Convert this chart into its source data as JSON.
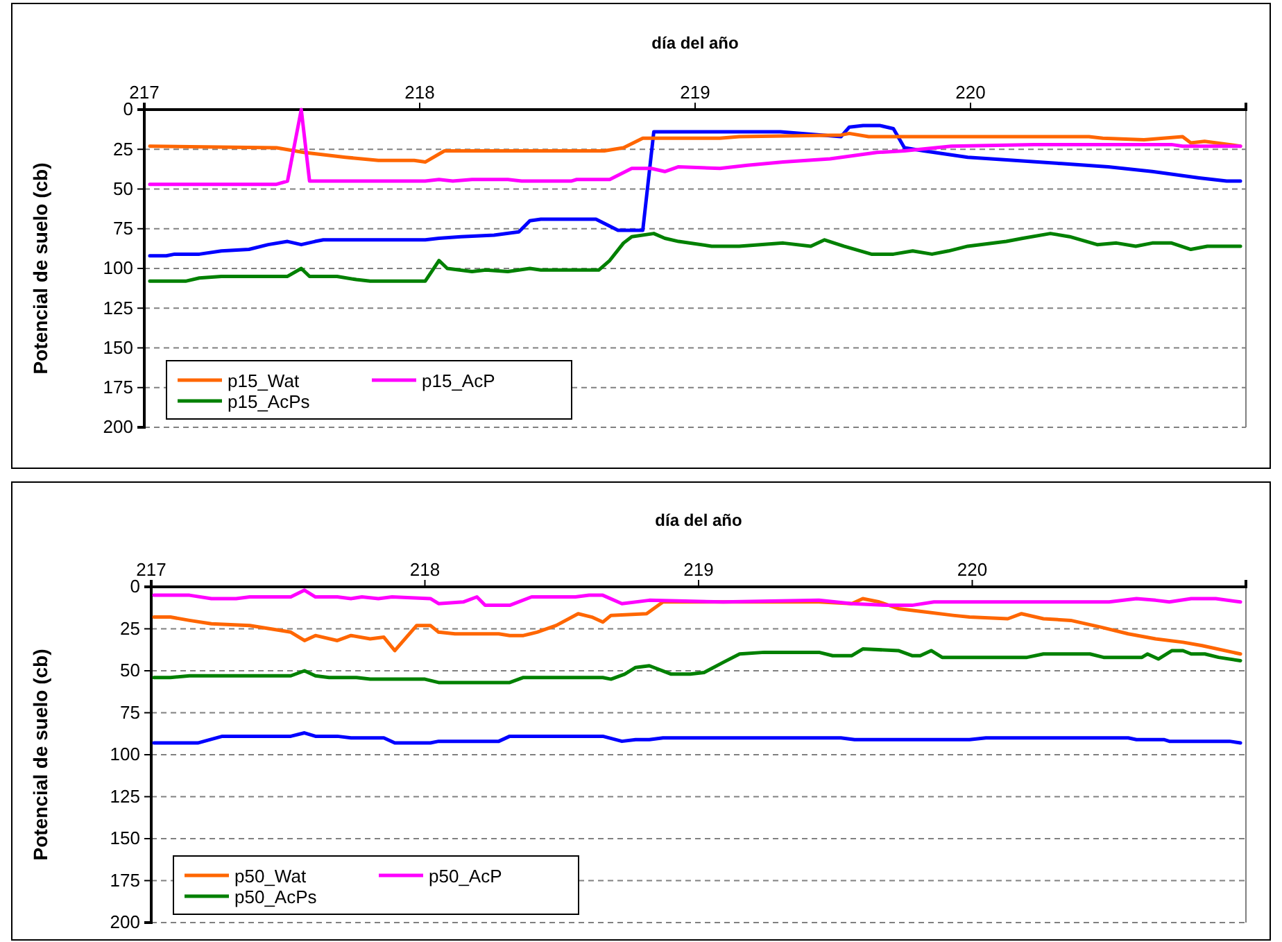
{
  "chart_data": [
    {
      "type": "line",
      "xlabel": "día del año",
      "ylabel": "Potencial de suelo (cb)",
      "xlim": [
        217,
        221
      ],
      "xticks": [
        217,
        218,
        219,
        220
      ],
      "ylim": [
        200,
        0
      ],
      "yticks": [
        0,
        25,
        50,
        75,
        100,
        125,
        150,
        175,
        200
      ],
      "grid": "y",
      "legend": "bottom left",
      "line_style": "solid",
      "marker": "none",
      "series": [
        {
          "color": "#0000ff",
          "x": [
            217.02,
            217.08,
            217.11,
            217.2,
            217.28,
            217.38,
            217.45,
            217.52,
            217.57,
            217.62,
            217.65,
            218.02,
            218.07,
            218.15,
            218.27,
            218.36,
            218.4,
            218.44,
            218.64,
            218.72,
            218.81,
            218.85,
            219.09,
            219.31,
            219.53,
            219.56,
            219.61,
            219.67,
            219.72,
            219.76,
            219.83,
            219.99,
            220.16,
            220.33,
            220.5,
            220.66,
            220.83,
            220.93,
            220.98
          ],
          "values": [
            92,
            92,
            91,
            91,
            89,
            88,
            85,
            83,
            85,
            83,
            82,
            82,
            81,
            80,
            79,
            77,
            70,
            69,
            69,
            76,
            76,
            14,
            14,
            14,
            17,
            11,
            10,
            10,
            12,
            24,
            26,
            30,
            32,
            34,
            36,
            39,
            43,
            45,
            45
          ]
        },
        {
          "name": "p15_Wat",
          "color": "#ff6600",
          "x": [
            217.02,
            217.48,
            217.58,
            217.73,
            217.85,
            217.98,
            218.02,
            218.09,
            218.67,
            218.74,
            218.81,
            219.09,
            219.16,
            219.53,
            219.56,
            219.63,
            220.43,
            220.48,
            220.63,
            220.7,
            220.77,
            220.8,
            220.85,
            220.98
          ],
          "values": [
            23,
            24,
            27,
            30,
            32,
            32,
            33,
            26,
            26,
            24,
            18,
            18,
            17,
            16,
            15,
            17,
            17,
            18,
            19,
            18,
            17,
            21,
            20,
            23
          ]
        },
        {
          "name": "p15_AcP",
          "color": "#ff00ff",
          "x": [
            217.02,
            217.48,
            217.52,
            217.57,
            217.6,
            218.02,
            218.07,
            218.12,
            218.19,
            218.32,
            218.37,
            218.55,
            218.57,
            218.69,
            218.77,
            218.84,
            218.89,
            218.94,
            219.09,
            219.19,
            219.32,
            219.49,
            219.66,
            219.76,
            219.93,
            220.23,
            220.73,
            220.77,
            220.98
          ],
          "values": [
            47,
            47,
            45,
            0,
            45,
            45,
            44,
            45,
            44,
            44,
            45,
            45,
            44,
            44,
            37,
            37,
            39,
            36,
            37,
            35,
            33,
            31,
            27,
            26,
            23,
            22,
            22,
            23,
            23
          ]
        },
        {
          "name": "p15_AcPs",
          "color": "#008000",
          "x": [
            217.02,
            217.15,
            217.2,
            217.28,
            217.52,
            217.57,
            217.6,
            217.7,
            217.77,
            217.82,
            218.02,
            218.07,
            218.1,
            218.19,
            218.24,
            218.32,
            218.4,
            218.44,
            218.65,
            218.69,
            218.74,
            218.77,
            218.85,
            218.89,
            218.94,
            219.06,
            219.16,
            219.32,
            219.42,
            219.47,
            219.54,
            219.64,
            219.72,
            219.79,
            219.86,
            219.92,
            219.99,
            220.13,
            220.19,
            220.29,
            220.36,
            220.46,
            220.53,
            220.6,
            220.66,
            220.73,
            220.8,
            220.86,
            220.98
          ],
          "values": [
            108,
            108,
            106,
            105,
            105,
            100,
            105,
            105,
            107,
            108,
            108,
            95,
            100,
            102,
            101,
            102,
            100,
            101,
            101,
            95,
            84,
            80,
            78,
            81,
            83,
            86,
            86,
            84,
            86,
            82,
            86,
            91,
            91,
            89,
            91,
            89,
            86,
            83,
            81,
            78,
            80,
            85,
            84,
            86,
            84,
            84,
            88,
            86,
            86
          ]
        }
      ]
    },
    {
      "type": "line",
      "xlabel": "día del año",
      "ylabel": "Potencial de suelo (cb)",
      "xlim": [
        217,
        221
      ],
      "xticks": [
        217,
        218,
        219,
        220
      ],
      "ylim": [
        200,
        0
      ],
      "yticks": [
        0,
        25,
        50,
        75,
        100,
        125,
        150,
        175,
        200
      ],
      "grid": "y",
      "legend": "bottom left",
      "line_style": "solid",
      "marker": "none",
      "series": [
        {
          "color": "#0000ff",
          "x": [
            217.01,
            217.17,
            217.26,
            217.51,
            217.56,
            217.6,
            217.68,
            217.73,
            217.85,
            217.89,
            218.02,
            218.05,
            218.27,
            218.31,
            218.65,
            218.72,
            218.77,
            218.82,
            218.87,
            219.09,
            219.52,
            219.57,
            219.99,
            220.05,
            220.57,
            220.6,
            220.7,
            220.72,
            220.94,
            220.98
          ],
          "values": [
            93,
            93,
            89,
            89,
            87,
            89,
            89,
            90,
            90,
            93,
            93,
            92,
            92,
            89,
            89,
            92,
            91,
            91,
            90,
            90,
            90,
            91,
            91,
            90,
            90,
            91,
            91,
            92,
            92,
            93
          ]
        },
        {
          "name": "p50_Wat",
          "color": "#ff6600",
          "x": [
            217.01,
            217.07,
            217.14,
            217.22,
            217.36,
            217.51,
            217.56,
            217.6,
            217.68,
            217.73,
            217.8,
            217.85,
            217.89,
            217.97,
            218.02,
            218.05,
            218.11,
            218.27,
            218.31,
            218.36,
            218.41,
            218.48,
            218.56,
            218.61,
            218.65,
            218.68,
            218.81,
            218.87,
            219.44,
            219.56,
            219.6,
            219.66,
            219.73,
            219.83,
            219.93,
            219.99,
            220.13,
            220.18,
            220.26,
            220.36,
            220.47,
            220.57,
            220.67,
            220.77,
            220.84,
            220.98
          ],
          "values": [
            18,
            18,
            20,
            22,
            23,
            27,
            32,
            29,
            32,
            29,
            31,
            30,
            38,
            23,
            23,
            27,
            28,
            28,
            29,
            29,
            27,
            23,
            16,
            18,
            21,
            17,
            16,
            9,
            9,
            10,
            7,
            9,
            13,
            15,
            17,
            18,
            19,
            16,
            19,
            20,
            24,
            28,
            31,
            33,
            35,
            40
          ]
        },
        {
          "name": "p50_AcP",
          "color": "#ff00ff",
          "x": [
            217.01,
            217.14,
            217.22,
            217.31,
            217.36,
            217.51,
            217.56,
            217.6,
            217.68,
            217.73,
            217.77,
            217.83,
            217.88,
            218.02,
            218.05,
            218.14,
            218.19,
            218.22,
            218.31,
            218.39,
            218.55,
            218.6,
            218.65,
            218.72,
            218.82,
            219.09,
            219.44,
            219.56,
            219.69,
            219.78,
            219.86,
            220.5,
            220.6,
            220.67,
            220.72,
            220.8,
            220.89,
            220.98
          ],
          "values": [
            5,
            5,
            7,
            7,
            6,
            6,
            2,
            6,
            6,
            7,
            6,
            7,
            6,
            7,
            10,
            9,
            6,
            11,
            11,
            6,
            6,
            5,
            5,
            10,
            8,
            9,
            8,
            10,
            11,
            11,
            9,
            9,
            7,
            8,
            9,
            7,
            7,
            9
          ]
        },
        {
          "name": "p50_AcPs",
          "color": "#008000",
          "x": [
            217.01,
            217.07,
            217.14,
            217.51,
            217.56,
            217.6,
            217.65,
            217.75,
            217.8,
            218.0,
            218.05,
            218.31,
            218.36,
            218.65,
            218.68,
            218.73,
            218.77,
            218.82,
            218.9,
            218.97,
            219.02,
            219.09,
            219.15,
            219.24,
            219.44,
            219.49,
            219.56,
            219.6,
            219.73,
            219.78,
            219.81,
            219.85,
            219.89,
            220.2,
            220.26,
            220.43,
            220.48,
            220.62,
            220.64,
            220.68,
            220.73,
            220.77,
            220.8,
            220.85,
            220.9,
            220.98
          ],
          "values": [
            54,
            54,
            53,
            53,
            50,
            53,
            54,
            54,
            55,
            55,
            57,
            57,
            54,
            54,
            55,
            52,
            48,
            47,
            52,
            52,
            51,
            45,
            40,
            39,
            39,
            41,
            41,
            37,
            38,
            41,
            41,
            38,
            42,
            42,
            40,
            40,
            42,
            42,
            40,
            43,
            38,
            38,
            40,
            40,
            42,
            44
          ]
        }
      ]
    }
  ]
}
